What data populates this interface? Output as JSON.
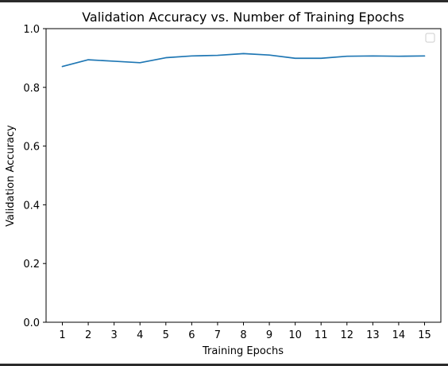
{
  "chart_data": {
    "type": "line",
    "title": "Validation Accuracy vs. Number of Training Epochs",
    "xlabel": "Training Epochs",
    "ylabel": "Validation Accuracy",
    "x": [
      1,
      2,
      3,
      4,
      5,
      6,
      7,
      8,
      9,
      10,
      11,
      12,
      13,
      14,
      15
    ],
    "xticks": [
      "1",
      "2",
      "3",
      "4",
      "5",
      "6",
      "7",
      "8",
      "9",
      "10",
      "11",
      "12",
      "13",
      "14",
      "15"
    ],
    "ylim": [
      0.0,
      1.0
    ],
    "yticks": [
      "0.0",
      "0.2",
      "0.4",
      "0.6",
      "0.8",
      "1.0"
    ],
    "ytick_values": [
      0.0,
      0.2,
      0.4,
      0.6,
      0.8,
      1.0
    ],
    "grid": false,
    "legend": "top-right",
    "series": [
      {
        "color": "#1f77b4",
        "values": [
          0.871,
          0.894,
          0.889,
          0.884,
          0.901,
          0.907,
          0.909,
          0.915,
          0.91,
          0.899,
          0.899,
          0.906,
          0.907,
          0.906,
          0.907
        ]
      }
    ]
  }
}
